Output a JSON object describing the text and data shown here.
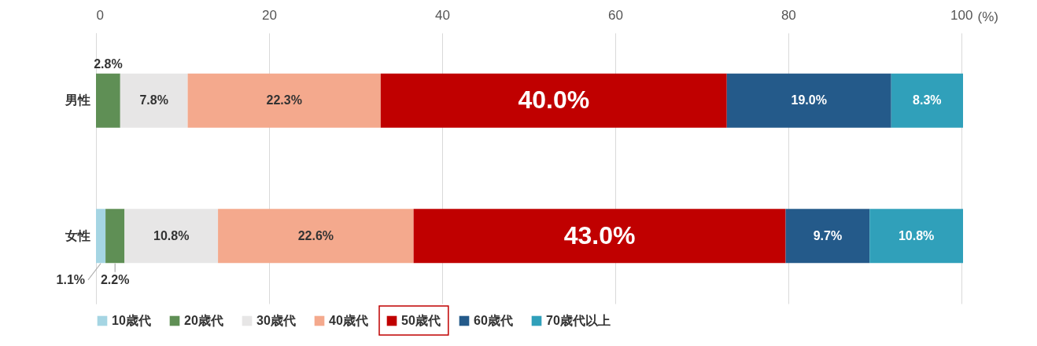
{
  "chart_data": {
    "type": "bar",
    "orientation": "horizontal",
    "stacked": true,
    "xlabel": "(%)",
    "categories": [
      "男性",
      "女性"
    ],
    "xlim": [
      0,
      100.2
    ],
    "xticks": [
      0,
      20,
      40,
      60,
      80,
      100
    ],
    "grid": "x",
    "legend": "bottom",
    "series": [
      {
        "name": "10歳代",
        "color": "#a5d5e3",
        "values": [
          null,
          1.1
        ],
        "value_labels": [
          null,
          "1.1%"
        ]
      },
      {
        "name": "20歳代",
        "color": "#5f8f55",
        "values": [
          2.8,
          2.2
        ],
        "value_labels": [
          "2.8%",
          "2.2%"
        ]
      },
      {
        "name": "30歳代",
        "color": "#e7e6e6",
        "values": [
          7.8,
          10.8
        ],
        "value_labels": [
          "7.8%",
          "10.8%"
        ]
      },
      {
        "name": "40歳代",
        "color": "#f4a98d",
        "values": [
          22.3,
          22.6
        ],
        "value_labels": [
          "22.3%",
          "22.6%"
        ]
      },
      {
        "name": "50歳代",
        "color": "#c00000",
        "values": [
          40.0,
          43.0
        ],
        "value_labels": [
          "40.0%",
          "43.0%"
        ]
      },
      {
        "name": "60歳代",
        "color": "#245a8a",
        "values": [
          19.0,
          9.7
        ],
        "value_labels": [
          "19.0%",
          "9.7%"
        ]
      },
      {
        "name": "70歳代以上",
        "color": "#30a0ba",
        "values": [
          8.3,
          10.8
        ],
        "value_labels": [
          "8.3%",
          "10.8%"
        ]
      }
    ]
  }
}
